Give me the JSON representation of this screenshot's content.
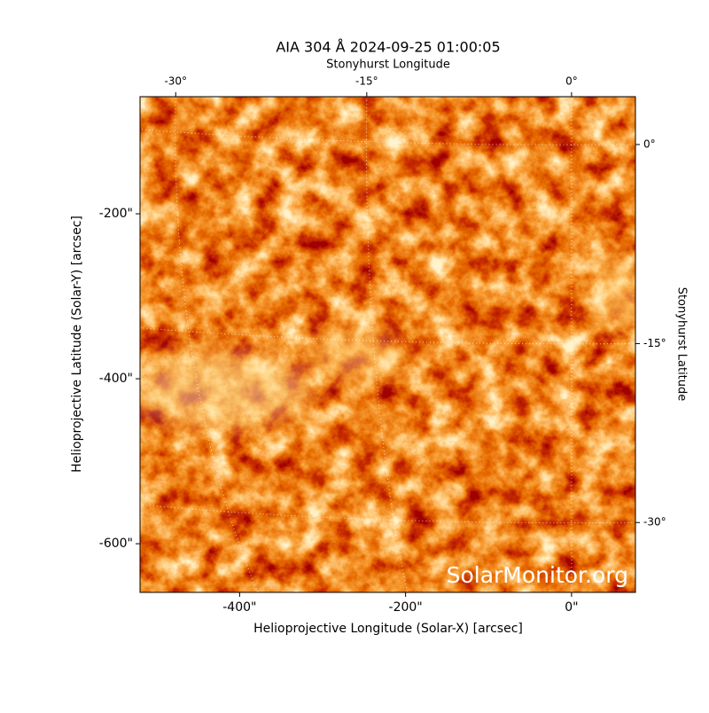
{
  "chart_data": {
    "type": "image",
    "title": "AIA 304 Å 2024-09-25 01:00:05",
    "xlabel": "Helioprojective Longitude (Solar-X) [arcsec]",
    "ylabel": "Helioprojective Latitude (Solar-Y) [arcsec]",
    "top_label": "Stonyhurst Longitude",
    "right_label": "Stonyhurst Latitude",
    "watermark": "SolarMonitor.org",
    "xlim": [
      -520,
      77
    ],
    "ylim": [
      -659,
      -58
    ],
    "xticks": [
      {
        "value": -400,
        "label": "-400\""
      },
      {
        "value": -200,
        "label": "-200\""
      },
      {
        "value": 0,
        "label": "0\""
      }
    ],
    "yticks": [
      {
        "value": -200,
        "label": "-200\""
      },
      {
        "value": -400,
        "label": "-400\""
      },
      {
        "value": -600,
        "label": "-600\""
      }
    ],
    "lon_ticks": [
      {
        "value": -30,
        "label": "-30°"
      },
      {
        "value": -15,
        "label": "-15°"
      },
      {
        "value": 0,
        "label": "0°"
      }
    ],
    "lat_ticks": [
      {
        "value": 0,
        "label": "0°"
      },
      {
        "value": -15,
        "label": "-15°"
      },
      {
        "value": -30,
        "label": "-30°"
      }
    ]
  }
}
